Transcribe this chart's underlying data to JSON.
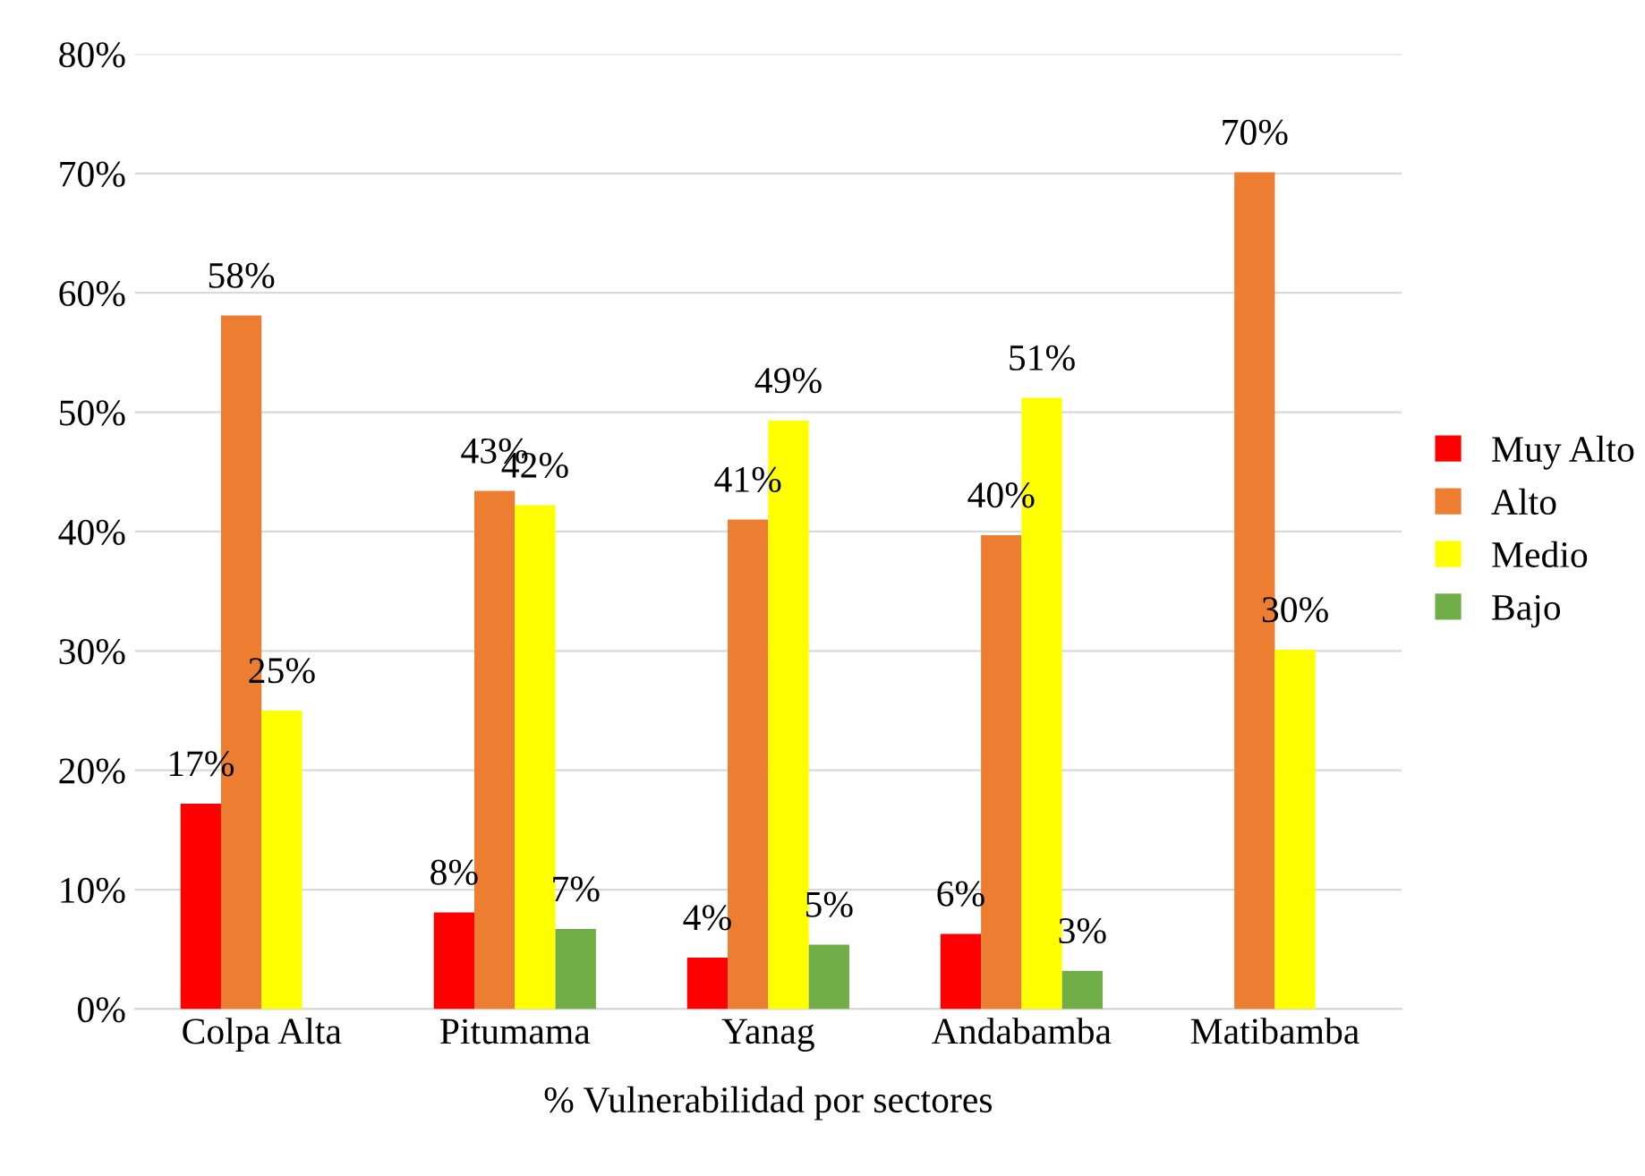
{
  "chart_data": {
    "type": "bar",
    "xlabel": "% Vulnerabilidad por sectores",
    "categories": [
      "Colpa Alta",
      "Pitumama",
      "Yanag",
      "Andabamba",
      "Matibamba"
    ],
    "series": [
      {
        "name": "Muy Alto",
        "color": "#ff0000",
        "values": [
          17.2,
          8.1,
          4.3,
          6.3,
          null
        ],
        "value_labels": [
          "17%",
          "8%",
          "4%",
          "6%",
          null
        ]
      },
      {
        "name": "Alto",
        "color": "#ed7d31",
        "values": [
          58.1,
          43.4,
          41.0,
          39.7,
          70.1
        ],
        "value_labels": [
          "58%",
          "43%",
          "41%",
          "40%",
          "70%"
        ]
      },
      {
        "name": "Medio",
        "color": "#ffff00",
        "values": [
          25.0,
          42.2,
          49.3,
          51.2,
          30.1
        ],
        "value_labels": [
          "25%",
          "42%",
          "49%",
          "51%",
          "30%"
        ]
      },
      {
        "name": "Bajo",
        "color": "#70ad47",
        "values": [
          null,
          6.7,
          5.4,
          3.2,
          null
        ],
        "value_labels": [
          null,
          "7%",
          "5%",
          "3%",
          null
        ]
      }
    ],
    "ylim": [
      0,
      80
    ],
    "yticks": [
      {
        "value": 0,
        "label": "0%"
      },
      {
        "value": 10,
        "label": "10%"
      },
      {
        "value": 20,
        "label": "20%"
      },
      {
        "value": 30,
        "label": "30%"
      },
      {
        "value": 40,
        "label": "40%"
      },
      {
        "value": 50,
        "label": "50%"
      },
      {
        "value": 60,
        "label": "60%"
      },
      {
        "value": 70,
        "label": "70%"
      },
      {
        "value": 80,
        "label": "80%"
      }
    ],
    "grid": "y",
    "legend": "right"
  }
}
